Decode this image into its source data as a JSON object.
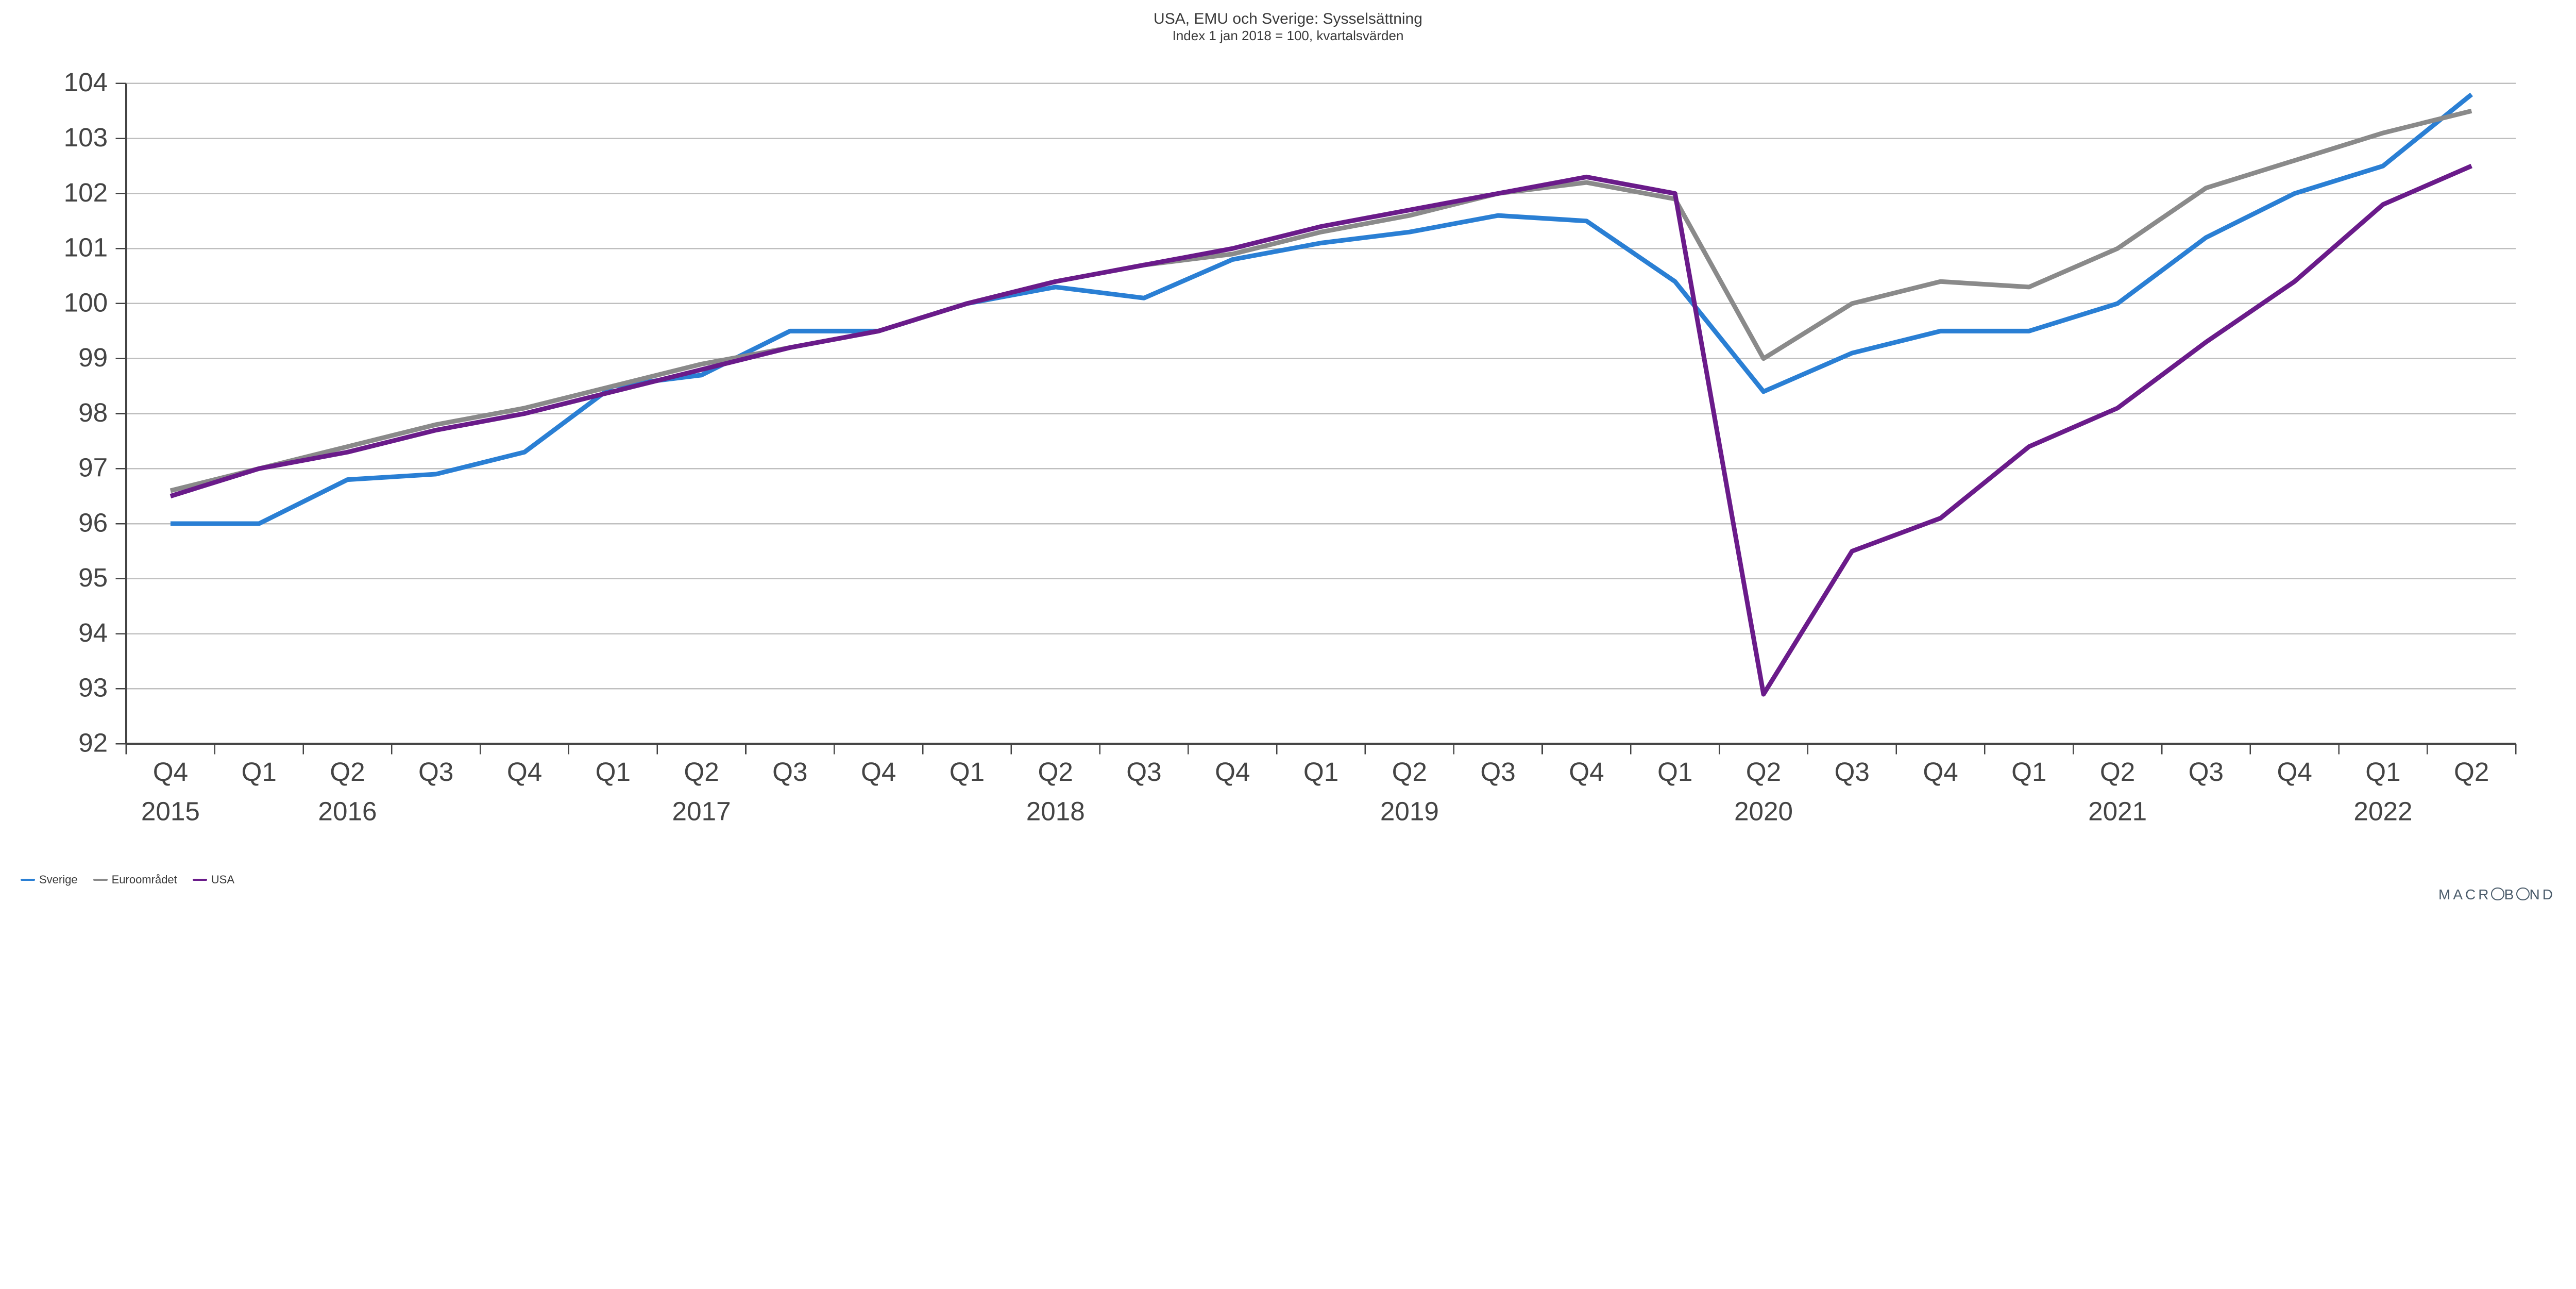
{
  "chart": {
    "type": "line",
    "title": "USA, EMU och Sverige: Sysselsättning",
    "subtitle": "Index 1 jan 2018 = 100, kvartalsvärden",
    "title_fontsize": 30,
    "subtitle_fontsize": 26,
    "axis_fontsize": 20,
    "legend_fontsize": 22,
    "brand_fontsize": 28,
    "background_color": "#ffffff",
    "grid_color": "#bfbfbf",
    "axis_color": "#444444",
    "text_color": "#3a3a3a",
    "line_width": 3.5,
    "ylim": [
      92,
      104
    ],
    "ytick_step": 1,
    "x_categories": [
      "Q4",
      "Q1",
      "Q2",
      "Q3",
      "Q4",
      "Q1",
      "Q2",
      "Q3",
      "Q4",
      "Q1",
      "Q2",
      "Q3",
      "Q4",
      "Q1",
      "Q2",
      "Q3",
      "Q4",
      "Q1",
      "Q2",
      "Q3",
      "Q4",
      "Q1",
      "Q2",
      "Q3",
      "Q4",
      "Q1",
      "Q2"
    ],
    "x_years": {
      "2015": 0,
      "2016": 2,
      "2017": 6,
      "2018": 10,
      "2019": 14,
      "2020": 18,
      "2021": 22,
      "2022": 25
    },
    "series": [
      {
        "name": "Sverige",
        "color": "#2a7fd4",
        "values": [
          96.0,
          96.0,
          96.8,
          96.9,
          97.3,
          98.5,
          98.7,
          99.5,
          99.5,
          100.0,
          100.3,
          100.1,
          100.8,
          101.1,
          101.3,
          101.6,
          101.5,
          100.4,
          98.4,
          99.1,
          99.5,
          99.5,
          100.0,
          101.2,
          102.0,
          102.5,
          103.8
        ]
      },
      {
        "name": "Euroområdet",
        "color": "#8a8a8a",
        "values": [
          96.6,
          97.0,
          97.4,
          97.8,
          98.1,
          98.5,
          98.9,
          99.2,
          99.5,
          100.0,
          100.4,
          100.7,
          100.9,
          101.3,
          101.6,
          102.0,
          102.2,
          101.9,
          99.0,
          100.0,
          100.4,
          100.3,
          101.0,
          102.1,
          102.6,
          103.1,
          103.5
        ]
      },
      {
        "name": "USA",
        "color": "#6a1b8a",
        "values": [
          96.5,
          97.0,
          97.3,
          97.7,
          98.0,
          98.4,
          98.8,
          99.2,
          99.5,
          100.0,
          100.4,
          100.7,
          101.0,
          101.4,
          101.7,
          102.0,
          102.3,
          102.0,
          92.9,
          95.5,
          96.1,
          97.4,
          98.1,
          99.3,
          100.4,
          101.8,
          102.5
        ]
      }
    ],
    "brand": "MACROBOND"
  }
}
